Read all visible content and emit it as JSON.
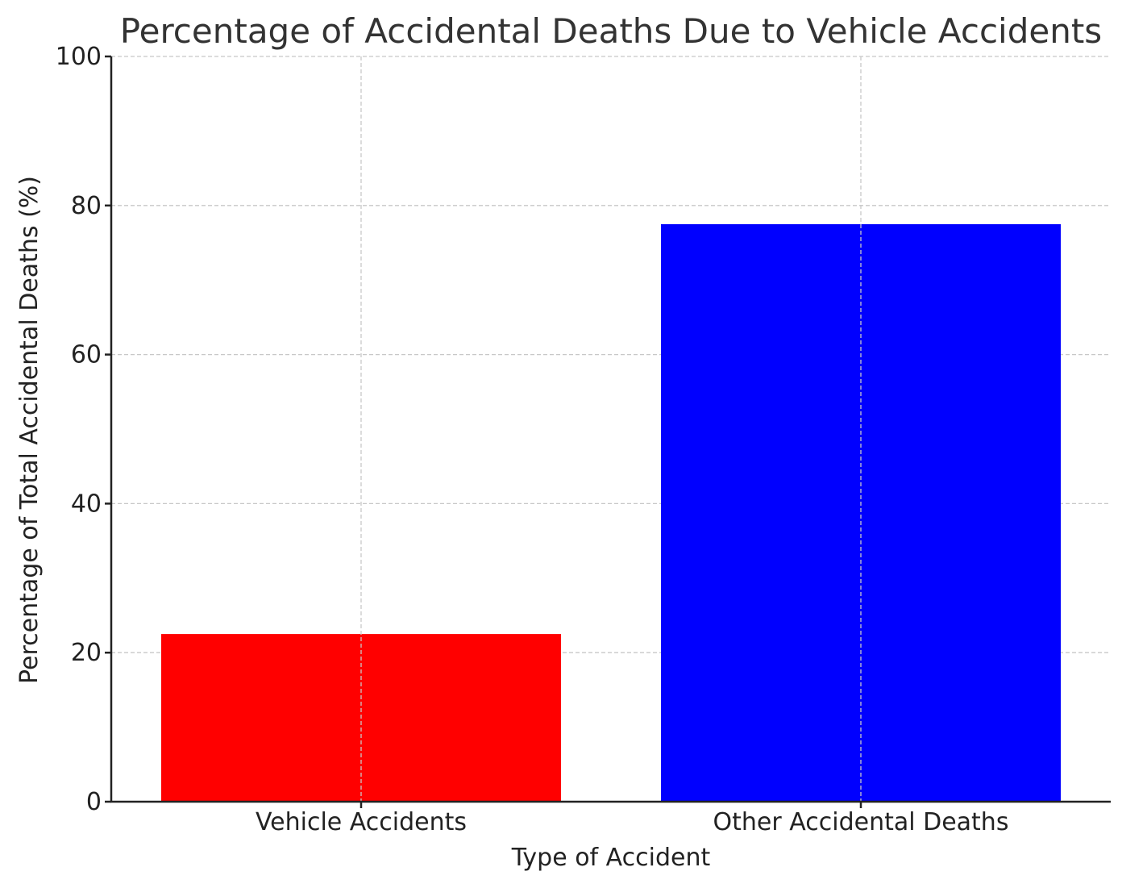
{
  "chart_data": {
    "type": "bar",
    "title": "Percentage of Accidental Deaths Due to Vehicle Accidents",
    "xlabel": "Type of Accident",
    "ylabel": "Percentage of Total Accidental Deaths (%)",
    "categories": [
      "Vehicle Accidents",
      "Other Accidental Deaths"
    ],
    "values": [
      22.5,
      77.5
    ],
    "colors": [
      "#ff0000",
      "#0000ff"
    ],
    "ylim": [
      0,
      100
    ],
    "yticks": [
      "0",
      "20",
      "40",
      "60",
      "80",
      "100"
    ],
    "grid": true,
    "legend": "none"
  }
}
